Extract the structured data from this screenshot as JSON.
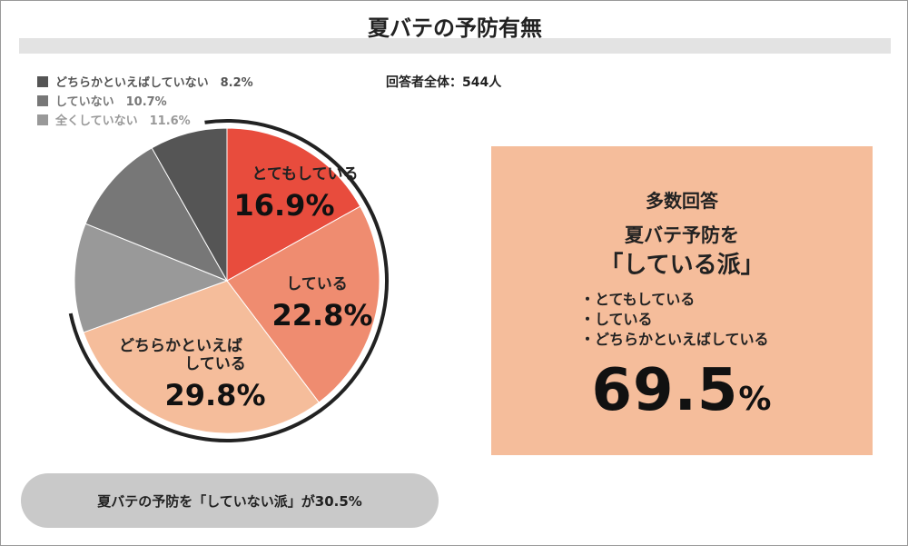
{
  "title": "夏バテの予防有無",
  "respondents": "回答者全体：544人",
  "legend": [
    {
      "label": "どちらかといえばしていない　8.2%",
      "color": "#555555"
    },
    {
      "label": "していない　10.7%",
      "color": "#777777"
    },
    {
      "label": "全くしていない　11.6%",
      "color": "#999999"
    }
  ],
  "labels": {
    "s0_name": "とてもしている",
    "s0_value": "16.9%",
    "s1_name": "している",
    "s1_value": "22.8%",
    "s2_name_1": "どちらかといえば",
    "s2_name_2": "している",
    "s2_value": "29.8%"
  },
  "callout": {
    "heading": "多数回答",
    "line1": "夏バテ予防を",
    "line2": "「している派」",
    "items": [
      "・とてもしている",
      "・している",
      "・どちらかといえばしている"
    ],
    "big_value": "69.5",
    "big_unit": "%"
  },
  "bottom_note": "夏バテの予防を「していない派」が30.5%",
  "chart_data": {
    "type": "pie",
    "title": "夏バテの予防有無",
    "slices": [
      {
        "name": "とてもしている",
        "value": 16.9,
        "color": "#e84c3d"
      },
      {
        "name": "している",
        "value": 22.8,
        "color": "#ef8c70"
      },
      {
        "name": "どちらかといえばしている",
        "value": 29.8,
        "color": "#f5bd9b"
      },
      {
        "name": "全くしていない",
        "value": 11.6,
        "color": "#999999"
      },
      {
        "name": "していない",
        "value": 10.7,
        "color": "#777777"
      },
      {
        "name": "どちらかといえばしていない",
        "value": 8.2,
        "color": "#555555"
      }
    ]
  }
}
